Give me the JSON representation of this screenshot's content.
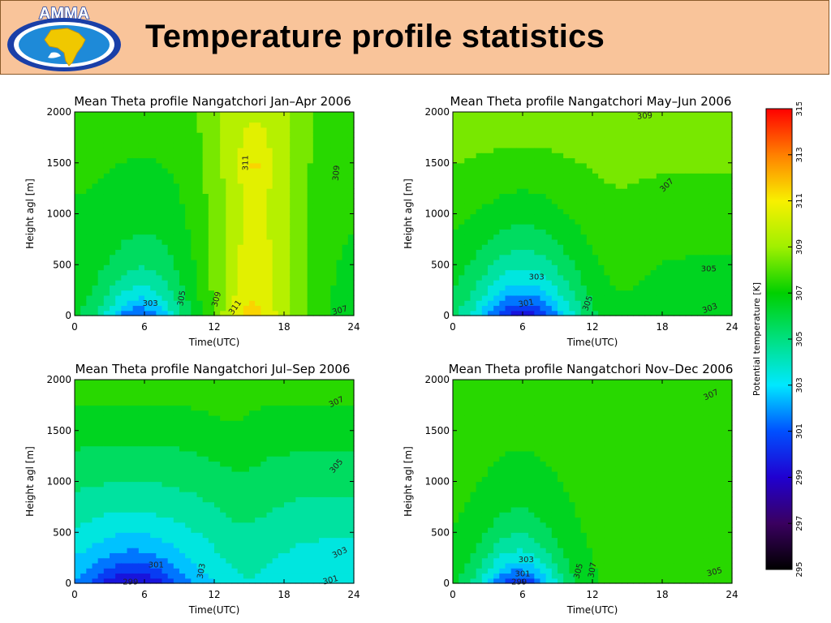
{
  "header": {
    "title": "Temperature profile statistics",
    "logo_text": "AMMA",
    "background": "#f9c49a",
    "logo_colors": {
      "ring": "#1a3fa8",
      "continent": "#f0c800",
      "water": "#1e8ad8"
    }
  },
  "colorbar": {
    "label": "Potential temperature [K]",
    "ticks": [
      "295",
      "297",
      "299",
      "301",
      "303",
      "305",
      "307",
      "309",
      "311",
      "313",
      "315"
    ],
    "range": [
      295,
      315
    ]
  },
  "chart_data": [
    {
      "type": "heatmap",
      "title": "Mean Theta profile Nangatchori Jan–Apr 2006",
      "xlabel": "Time(UTC)",
      "ylabel": "Height agl [m]",
      "x_ticks": [
        "0",
        "6",
        "12",
        "18",
        "24"
      ],
      "y_ticks": [
        "0",
        "500",
        "1000",
        "1500",
        "2000"
      ],
      "xlim": [
        0,
        24
      ],
      "ylim": [
        0,
        2000
      ],
      "contour_labels": [
        {
          "text": "303",
          "x": 6.5,
          "y": 120,
          "angle": 0
        },
        {
          "text": "305",
          "x": 9.2,
          "y": 170,
          "angle": -80
        },
        {
          "text": "309",
          "x": 12.2,
          "y": 160,
          "angle": -75
        },
        {
          "text": "311",
          "x": 13.8,
          "y": 80,
          "angle": -55
        },
        {
          "text": "311",
          "x": 14.7,
          "y": 1500,
          "angle": -90
        },
        {
          "text": "309",
          "x": 22.5,
          "y": 1400,
          "angle": -85
        },
        {
          "text": "307",
          "x": 22.8,
          "y": 50,
          "angle": -15
        }
      ]
    },
    {
      "type": "heatmap",
      "title": "Mean Theta profile Nangatchori May–Jun 2006",
      "xlabel": "Time(UTC)",
      "ylabel": "Height agl [m]",
      "x_ticks": [
        "0",
        "6",
        "12",
        "18",
        "24"
      ],
      "y_ticks": [
        "0",
        "500",
        "1000",
        "1500",
        "2000"
      ],
      "xlim": [
        0,
        24
      ],
      "ylim": [
        0,
        2000
      ],
      "contour_labels": [
        {
          "text": "309",
          "x": 16.5,
          "y": 1960,
          "angle": -5
        },
        {
          "text": "307",
          "x": 18.4,
          "y": 1280,
          "angle": -45
        },
        {
          "text": "303",
          "x": 7.2,
          "y": 380,
          "angle": 0
        },
        {
          "text": "301",
          "x": 6.3,
          "y": 120,
          "angle": -10
        },
        {
          "text": "305",
          "x": 22.0,
          "y": 460,
          "angle": 0
        },
        {
          "text": "303",
          "x": 22.1,
          "y": 70,
          "angle": -20
        },
        {
          "text": "305",
          "x": 11.6,
          "y": 120,
          "angle": -70
        }
      ]
    },
    {
      "type": "heatmap",
      "title": "Mean Theta profile Nangatchori Jul–Sep 2006",
      "xlabel": "Time(UTC)",
      "ylabel": "Height agl [m]",
      "x_ticks": [
        "0",
        "6",
        "12",
        "18",
        "24"
      ],
      "y_ticks": [
        "0",
        "500",
        "1000",
        "1500",
        "2000"
      ],
      "xlim": [
        0,
        24
      ],
      "ylim": [
        0,
        2000
      ],
      "contour_labels": [
        {
          "text": "307",
          "x": 22.5,
          "y": 1780,
          "angle": -25
        },
        {
          "text": "305",
          "x": 22.5,
          "y": 1150,
          "angle": -50
        },
        {
          "text": "301",
          "x": 7.0,
          "y": 180,
          "angle": 0
        },
        {
          "text": "303",
          "x": 10.9,
          "y": 120,
          "angle": -80
        },
        {
          "text": "303",
          "x": 22.8,
          "y": 300,
          "angle": -25
        },
        {
          "text": "301",
          "x": 22.0,
          "y": 30,
          "angle": -15
        },
        {
          "text": "299",
          "x": 4.8,
          "y": 10,
          "angle": 0
        }
      ]
    },
    {
      "type": "heatmap",
      "title": "Mean Theta profile Nangatchori Nov–Dec 2006",
      "xlabel": "Time(UTC)",
      "ylabel": "Height agl [m]",
      "x_ticks": [
        "0",
        "6",
        "12",
        "18",
        "24"
      ],
      "y_ticks": [
        "0",
        "500",
        "1000",
        "1500",
        "2000"
      ],
      "xlim": [
        0,
        24
      ],
      "ylim": [
        0,
        2000
      ],
      "contour_labels": [
        {
          "text": "307",
          "x": 22.2,
          "y": 1850,
          "angle": -25
        },
        {
          "text": "303",
          "x": 6.3,
          "y": 230,
          "angle": 0
        },
        {
          "text": "301",
          "x": 6.0,
          "y": 90,
          "angle": 0
        },
        {
          "text": "299",
          "x": 5.7,
          "y": 10,
          "angle": 0
        },
        {
          "text": "305",
          "x": 10.8,
          "y": 120,
          "angle": -75
        },
        {
          "text": "307",
          "x": 12.0,
          "y": 130,
          "angle": -80
        },
        {
          "text": "305",
          "x": 22.5,
          "y": 110,
          "angle": -15
        }
      ]
    }
  ]
}
